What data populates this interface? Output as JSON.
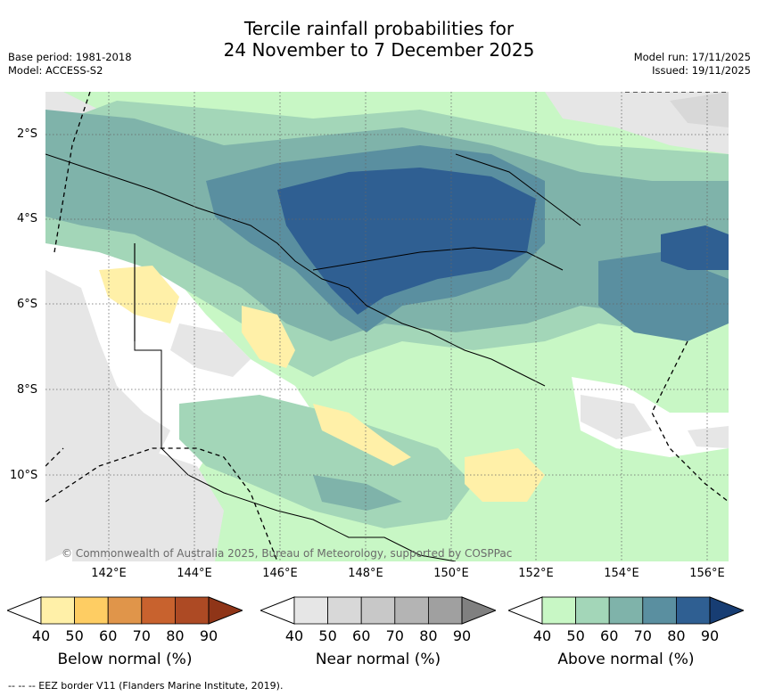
{
  "title_line1": "Tercile rainfall probabilities for",
  "title_line2": "24 November to 7 December 2025",
  "meta_left": [
    "Base period: 1981-2018",
    "Model: ACCESS-S2"
  ],
  "meta_right": [
    "Model run: 17/11/2025",
    "Issued: 19/11/2025"
  ],
  "lat_labels": [
    "2°S",
    "4°S",
    "6°S",
    "8°S",
    "10°S"
  ],
  "lon_labels": [
    "142°E",
    "144°E",
    "146°E",
    "148°E",
    "150°E",
    "152°E",
    "154°E",
    "156°E"
  ],
  "copyright": "© Commonwealth of Australia 2025, Bureau of Meteorology, supported by COSPPac",
  "colorbars": [
    {
      "name": "Below normal (%)",
      "ticks": [
        "40",
        "50",
        "60",
        "70",
        "80",
        "90"
      ],
      "colors": [
        "#ffffff",
        "#fff0a8",
        "#fecd63",
        "#e0954a",
        "#c8622e",
        "#ad4a24",
        "#8f3518"
      ]
    },
    {
      "name": "Near normal (%)",
      "ticks": [
        "40",
        "50",
        "60",
        "70",
        "80",
        "90"
      ],
      "colors": [
        "#ffffff",
        "#e6e6e6",
        "#d8d8d8",
        "#c8c8c8",
        "#b4b4b4",
        "#a0a0a0",
        "#808080"
      ]
    },
    {
      "name": "Above normal (%)",
      "ticks": [
        "40",
        "50",
        "60",
        "70",
        "80",
        "90"
      ],
      "colors": [
        "#ffffff",
        "#c8f7c5",
        "#a3d6b8",
        "#7fb3aa",
        "#5a8fa0",
        "#2f5f92",
        "#173d73"
      ]
    }
  ],
  "footnote": "--  --  -- EEZ border V11 (Flanders Marine Institute, 2019)."
}
